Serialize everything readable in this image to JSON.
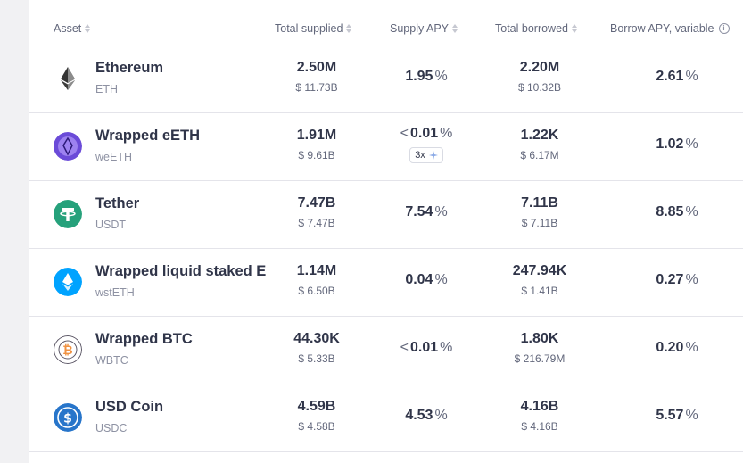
{
  "headers": {
    "asset": "Asset",
    "total_supplied": "Total supplied",
    "supply_apy": "Supply APY",
    "total_borrowed": "Total borrowed",
    "borrow_apy": "Borrow APY, variable"
  },
  "rows": [
    {
      "name": "Ethereum",
      "symbol": "ETH",
      "icon": "ethereum-icon",
      "supplied": "2.50M",
      "supplied_usd": "$ 11.73B",
      "supply_apy": "1.95",
      "borrowed": "2.20M",
      "borrowed_usd": "$ 10.32B",
      "borrow_apy": "2.61"
    },
    {
      "name": "Wrapped eETH",
      "symbol": "weETH",
      "icon": "weeth-icon",
      "supplied": "1.91M",
      "supplied_usd": "$ 9.61B",
      "supply_apy_prefix": "<",
      "supply_apy": "0.01",
      "incentive": "3x",
      "borrowed": "1.22K",
      "borrowed_usd": "$ 6.17M",
      "borrow_apy": "1.02"
    },
    {
      "name": "Tether",
      "symbol": "USDT",
      "icon": "tether-icon",
      "supplied": "7.47B",
      "supplied_usd": "$ 7.47B",
      "supply_apy": "7.54",
      "borrowed": "7.11B",
      "borrowed_usd": "$ 7.11B",
      "borrow_apy": "8.85"
    },
    {
      "name": "Wrapped liquid staked E",
      "symbol": "wstETH",
      "icon": "wsteth-icon",
      "supplied": "1.14M",
      "supplied_usd": "$ 6.50B",
      "supply_apy": "0.04",
      "borrowed": "247.94K",
      "borrowed_usd": "$ 1.41B",
      "borrow_apy": "0.27"
    },
    {
      "name": "Wrapped BTC",
      "symbol": "WBTC",
      "icon": "wbtc-icon",
      "supplied": "44.30K",
      "supplied_usd": "$ 5.33B",
      "supply_apy_prefix": "<",
      "supply_apy": "0.01",
      "borrowed": "1.80K",
      "borrowed_usd": "$ 216.79M",
      "borrow_apy": "0.20"
    },
    {
      "name": "USD Coin",
      "symbol": "USDC",
      "icon": "usdc-icon",
      "supplied": "4.59B",
      "supplied_usd": "$ 4.58B",
      "supply_apy": "4.53",
      "borrowed": "4.16B",
      "borrowed_usd": "$ 4.16B",
      "borrow_apy": "5.57"
    }
  ],
  "percent_sign": "%",
  "colors": {
    "ethereum": "#343434",
    "weeth": "#6b4bd8",
    "tether": "#26a17b",
    "wsteth": "#00a3ff",
    "wbtc": "#f09242",
    "usdc": "#2775ca"
  }
}
